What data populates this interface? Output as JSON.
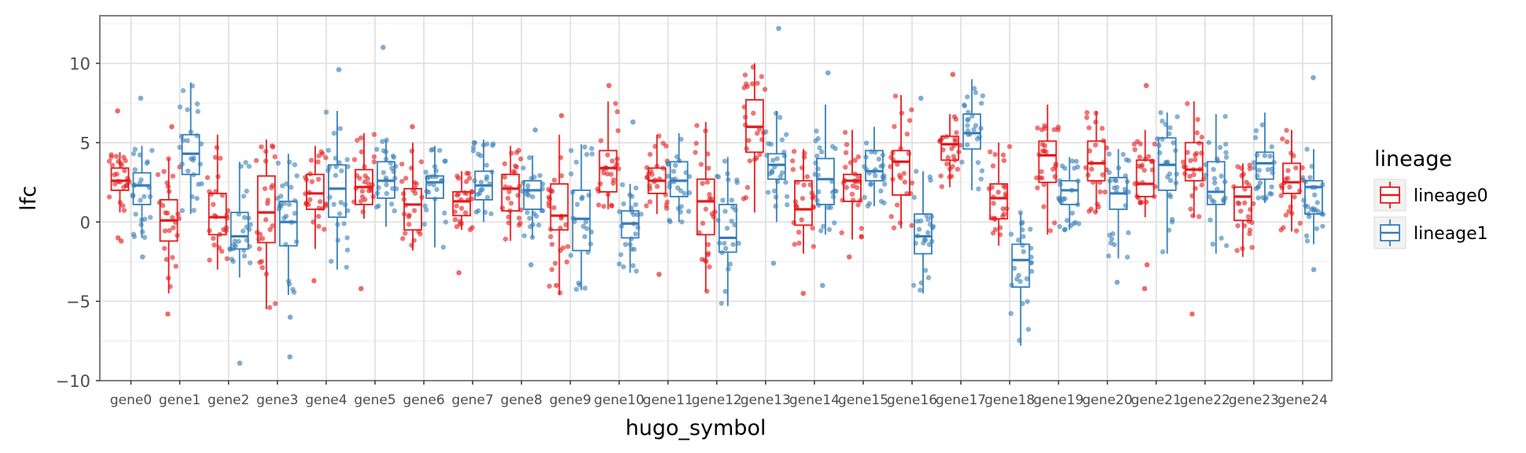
{
  "chart_data": {
    "type": "boxplot",
    "title": "",
    "xlabel": "hugo_symbol",
    "ylabel": "lfc",
    "ylim": [
      -10,
      13
    ],
    "yticks": [
      -10,
      -5,
      0,
      5,
      10
    ],
    "ytick_labels": [
      "−10",
      "−5",
      "0",
      "5",
      "10"
    ],
    "grid": true,
    "legend": {
      "title": "lineage",
      "position": "right"
    },
    "categories": [
      "gene0",
      "gene1",
      "gene2",
      "gene3",
      "gene4",
      "gene5",
      "gene6",
      "gene7",
      "gene8",
      "gene9",
      "gene10",
      "gene11",
      "gene12",
      "gene13",
      "gene14",
      "gene15",
      "gene16",
      "gene17",
      "gene18",
      "gene19",
      "gene20",
      "gene21",
      "gene22",
      "gene23",
      "gene24"
    ],
    "series": [
      {
        "name": "lineage0",
        "color": "#e41a1c",
        "boxes": [
          {
            "q1": 2.0,
            "median": 2.6,
            "q3": 3.4,
            "wlo": 0.6,
            "whi": 4.4
          },
          {
            "q1": -1.2,
            "median": 0.1,
            "q3": 1.4,
            "wlo": -4.5,
            "whi": 4.0
          },
          {
            "q1": -0.8,
            "median": 0.3,
            "q3": 1.8,
            "wlo": -3.0,
            "whi": 5.5
          },
          {
            "q1": -1.3,
            "median": 0.6,
            "q3": 2.9,
            "wlo": -5.5,
            "whi": 5.2
          },
          {
            "q1": 0.8,
            "median": 1.8,
            "q3": 3.0,
            "wlo": -1.7,
            "whi": 4.8
          },
          {
            "q1": 1.1,
            "median": 2.2,
            "q3": 3.3,
            "wlo": 0.2,
            "whi": 5.6
          },
          {
            "q1": -0.5,
            "median": 1.1,
            "q3": 2.1,
            "wlo": -1.8,
            "whi": 5.0
          },
          {
            "q1": 0.4,
            "median": 1.3,
            "q3": 1.9,
            "wlo": -0.5,
            "whi": 3.2
          },
          {
            "q1": 0.7,
            "median": 2.1,
            "q3": 3.0,
            "wlo": -1.2,
            "whi": 4.8
          },
          {
            "q1": -0.5,
            "median": 0.4,
            "q3": 2.4,
            "wlo": -4.6,
            "whi": 5.5
          },
          {
            "q1": 1.9,
            "median": 3.4,
            "q3": 4.5,
            "wlo": 0.8,
            "whi": 7.6
          },
          {
            "q1": 1.8,
            "median": 2.6,
            "q3": 3.4,
            "wlo": 0.5,
            "whi": 5.5
          },
          {
            "q1": -0.8,
            "median": 1.3,
            "q3": 2.7,
            "wlo": -4.4,
            "whi": 6.3
          },
          {
            "q1": 4.4,
            "median": 6.0,
            "q3": 7.7,
            "wlo": 0.6,
            "whi": 10.0
          },
          {
            "q1": -0.2,
            "median": 0.8,
            "q3": 2.6,
            "wlo": -2.0,
            "whi": 4.6
          },
          {
            "q1": 1.3,
            "median": 2.6,
            "q3": 3.0,
            "wlo": -1.1,
            "whi": 5.8
          },
          {
            "q1": 1.7,
            "median": 3.8,
            "q3": 4.5,
            "wlo": -0.4,
            "whi": 8.0
          },
          {
            "q1": 3.9,
            "median": 4.9,
            "q3": 5.4,
            "wlo": 2.2,
            "whi": 6.8
          },
          {
            "q1": 0.2,
            "median": 1.5,
            "q3": 2.4,
            "wlo": -1.5,
            "whi": 5.0
          },
          {
            "q1": 2.5,
            "median": 4.2,
            "q3": 5.1,
            "wlo": -0.8,
            "whi": 7.4
          },
          {
            "q1": 2.6,
            "median": 3.7,
            "q3": 5.1,
            "wlo": 0.6,
            "whi": 7.0
          },
          {
            "q1": 1.6,
            "median": 2.4,
            "q3": 3.9,
            "wlo": 0.3,
            "whi": 5.8
          },
          {
            "q1": 2.6,
            "median": 3.3,
            "q3": 5.0,
            "wlo": 0.3,
            "whi": 7.6
          },
          {
            "q1": 0.1,
            "median": 1.6,
            "q3": 2.2,
            "wlo": -2.2,
            "whi": 3.7
          },
          {
            "q1": 1.8,
            "median": 2.5,
            "q3": 3.7,
            "wlo": -0.6,
            "whi": 5.8
          }
        ]
      },
      {
        "name": "lineage1",
        "color": "#377eb8",
        "boxes": [
          {
            "q1": 1.1,
            "median": 2.3,
            "q3": 3.1,
            "wlo": -1.0,
            "whi": 4.8
          },
          {
            "q1": 3.0,
            "median": 4.3,
            "q3": 5.5,
            "wlo": 0.5,
            "whi": 8.8
          },
          {
            "q1": -1.7,
            "median": -0.9,
            "q3": 0.6,
            "wlo": -3.5,
            "whi": 3.8
          },
          {
            "q1": -1.5,
            "median": 0.0,
            "q3": 1.3,
            "wlo": -4.6,
            "whi": 4.3
          },
          {
            "q1": 0.3,
            "median": 2.1,
            "q3": 3.6,
            "wlo": -3.0,
            "whi": 7.0
          },
          {
            "q1": 1.5,
            "median": 2.6,
            "q3": 3.8,
            "wlo": -0.3,
            "whi": 5.2
          },
          {
            "q1": 1.5,
            "median": 2.5,
            "q3": 2.9,
            "wlo": -1.6,
            "whi": 4.8
          },
          {
            "q1": 1.4,
            "median": 2.3,
            "q3": 3.2,
            "wlo": 0.0,
            "whi": 5.2
          },
          {
            "q1": 0.8,
            "median": 2.0,
            "q3": 2.6,
            "wlo": -1.0,
            "whi": 4.2
          },
          {
            "q1": -1.8,
            "median": 0.2,
            "q3": 2.0,
            "wlo": -4.3,
            "whi": 4.9
          },
          {
            "q1": -1.0,
            "median": -0.1,
            "q3": 0.7,
            "wlo": -3.2,
            "whi": 2.4
          },
          {
            "q1": 1.6,
            "median": 2.6,
            "q3": 3.8,
            "wlo": 0.0,
            "whi": 5.6
          },
          {
            "q1": -1.9,
            "median": -1.0,
            "q3": 1.1,
            "wlo": -5.3,
            "whi": 4.1
          },
          {
            "q1": 2.7,
            "median": 3.6,
            "q3": 4.3,
            "wlo": 0.0,
            "whi": 7.0
          },
          {
            "q1": 1.1,
            "median": 2.7,
            "q3": 4.0,
            "wlo": -0.8,
            "whi": 7.4
          },
          {
            "q1": 2.6,
            "median": 3.2,
            "q3": 4.5,
            "wlo": 1.0,
            "whi": 6.0
          },
          {
            "q1": -2.0,
            "median": -0.9,
            "q3": 0.5,
            "wlo": -4.5,
            "whi": 3.2
          },
          {
            "q1": 4.6,
            "median": 5.6,
            "q3": 6.8,
            "wlo": 2.0,
            "whi": 9.0
          },
          {
            "q1": -4.1,
            "median": -2.4,
            "q3": -1.4,
            "wlo": -7.8,
            "whi": 0.6
          },
          {
            "q1": 1.1,
            "median": 2.0,
            "q3": 2.6,
            "wlo": -0.5,
            "whi": 4.1
          },
          {
            "q1": 0.8,
            "median": 1.8,
            "q3": 2.8,
            "wlo": -2.3,
            "whi": 4.6
          },
          {
            "q1": 2.0,
            "median": 3.6,
            "q3": 5.3,
            "wlo": -2.0,
            "whi": 6.9
          },
          {
            "q1": 1.1,
            "median": 1.9,
            "q3": 3.8,
            "wlo": -2.0,
            "whi": 6.8
          },
          {
            "q1": 2.7,
            "median": 3.7,
            "q3": 4.4,
            "wlo": 1.2,
            "whi": 6.9
          },
          {
            "q1": 0.5,
            "median": 2.2,
            "q3": 2.6,
            "wlo": -1.4,
            "whi": 4.6
          }
        ]
      }
    ],
    "outliers": [
      {
        "category": "gene0",
        "series": "lineage0",
        "values": [
          -1.2,
          -1.0,
          7.0
        ]
      },
      {
        "category": "gene0",
        "series": "lineage1",
        "values": [
          7.8,
          -2.2
        ]
      },
      {
        "category": "gene1",
        "series": "lineage0",
        "values": [
          -5.8,
          6.0
        ]
      },
      {
        "category": "gene2",
        "series": "lineage1",
        "values": [
          -8.9
        ]
      },
      {
        "category": "gene3",
        "series": "lineage1",
        "values": [
          -8.5,
          -6.0
        ]
      },
      {
        "category": "gene4",
        "series": "lineage0",
        "values": [
          -3.7
        ]
      },
      {
        "category": "gene4",
        "series": "lineage1",
        "values": [
          9.6
        ]
      },
      {
        "category": "gene5",
        "series": "lineage0",
        "values": [
          -4.2
        ]
      },
      {
        "category": "gene5",
        "series": "lineage1",
        "values": [
          11.0
        ]
      },
      {
        "category": "gene6",
        "series": "lineage0",
        "values": [
          6.0
        ]
      },
      {
        "category": "gene7",
        "series": "lineage0",
        "values": [
          -3.2
        ]
      },
      {
        "category": "gene8",
        "series": "lineage1",
        "values": [
          5.8,
          -2.7
        ]
      },
      {
        "category": "gene9",
        "series": "lineage0",
        "values": [
          6.7,
          -4.0
        ]
      },
      {
        "category": "gene10",
        "series": "lineage0",
        "values": [
          8.6
        ]
      },
      {
        "category": "gene10",
        "series": "lineage1",
        "values": [
          6.3
        ]
      },
      {
        "category": "gene11",
        "series": "lineage0",
        "values": [
          -3.3
        ]
      },
      {
        "category": "gene13",
        "series": "lineage1",
        "values": [
          12.2,
          -2.6
        ]
      },
      {
        "category": "gene14",
        "series": "lineage0",
        "values": [
          -4.5
        ]
      },
      {
        "category": "gene14",
        "series": "lineage1",
        "values": [
          9.4,
          -4.0
        ]
      },
      {
        "category": "gene15",
        "series": "lineage0",
        "values": [
          -2.2
        ]
      },
      {
        "category": "gene16",
        "series": "lineage1",
        "values": [
          7.8
        ]
      },
      {
        "category": "gene17",
        "series": "lineage0",
        "values": [
          9.3
        ]
      },
      {
        "category": "gene20",
        "series": "lineage1",
        "values": [
          -3.8
        ]
      },
      {
        "category": "gene21",
        "series": "lineage0",
        "values": [
          8.6,
          -2.7,
          -4.2
        ]
      },
      {
        "category": "gene22",
        "series": "lineage0",
        "values": [
          -5.8
        ]
      },
      {
        "category": "gene24",
        "series": "lineage1",
        "values": [
          9.1,
          -3.0
        ]
      }
    ]
  }
}
